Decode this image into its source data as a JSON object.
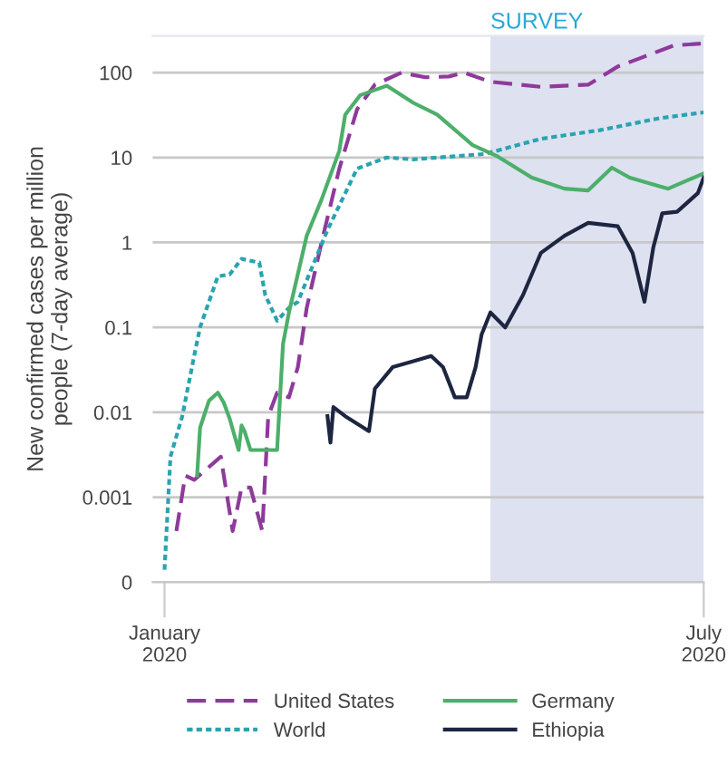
{
  "chart_data": {
    "type": "line",
    "ylabel": "New confirmed cases per million\npeople (7-day average)",
    "x": [
      "2020-01-05",
      "2020-01-08",
      "2020-01-11",
      "2020-01-20",
      "2020-01-24",
      "2020-01-27",
      "2020-01-30",
      "2020-02-03",
      "2020-02-05",
      "2020-02-08",
      "2020-02-12",
      "2020-02-15",
      "2020-02-18",
      "2020-02-23",
      "2020-02-29",
      "2020-03-06",
      "2020-03-12",
      "2020-03-21",
      "2020-03-29",
      "2020-04-06",
      "2020-04-11",
      "2020-04-20",
      "2020-05-07",
      "2020-05-23",
      "2020-06-02",
      "2020-06-10",
      "2020-06-21",
      "2020-06-30"
    ],
    "series": [
      {
        "name": "United States",
        "color": "#8e3a9b",
        "line_style": "dashed",
        "values": [
          0.0004,
          0.0018,
          0.0016,
          0.003,
          0.0004,
          0.0013,
          0.0013,
          0.0004,
          0.009,
          0.017,
          0.015,
          0.034,
          0.17,
          1,
          7.4,
          37,
          72,
          100,
          88,
          90,
          100,
          78,
          68,
          72,
          118,
          150,
          209,
          219
        ]
      },
      {
        "name": "World",
        "color": "#2aa3b0",
        "line_style": "dotted",
        "x": [
          "2020-01-01",
          "2020-01-03",
          "2020-01-07",
          "2020-01-11",
          "2020-01-13",
          "2020-01-19",
          "2020-01-23",
          "2020-01-27",
          "2020-02-02",
          "2020-02-04",
          "2020-02-08",
          "2020-02-12",
          "2020-02-15",
          "2020-02-25",
          "2020-03-06",
          "2020-03-16",
          "2020-03-25",
          "2020-04-18",
          "2020-05-07",
          "2020-05-27",
          "2020-06-16",
          "2020-07-01"
        ],
        "values": [
          0.00014,
          0.003,
          0.009,
          0.046,
          0.1,
          0.4,
          0.42,
          0.64,
          0.58,
          0.24,
          0.12,
          0.17,
          0.2,
          1.4,
          7.4,
          10,
          9.5,
          11,
          16.6,
          21,
          29,
          34
        ]
      },
      {
        "name": "Germany",
        "color": "#4caf6a",
        "line_style": "solid",
        "x": [
          "2020-01-12",
          "2020-01-13",
          "2020-01-16",
          "2020-01-19",
          "2020-01-21",
          "2020-01-23",
          "2020-01-26",
          "2020-01-27",
          "2020-01-28",
          "2020-01-30",
          "2020-02-08",
          "2020-02-10",
          "2020-02-12",
          "2020-02-18",
          "2020-02-23",
          "2020-02-29",
          "2020-03-02",
          "2020-03-07",
          "2020-03-16",
          "2020-03-25",
          "2020-04-02",
          "2020-04-14",
          "2020-04-22",
          "2020-05-04",
          "2020-05-15",
          "2020-05-23",
          "2020-05-31",
          "2020-06-06",
          "2020-06-19",
          "2020-07-01"
        ],
        "values": [
          0.0018,
          0.0066,
          0.0137,
          0.017,
          0.013,
          0.0084,
          0.0036,
          0.007,
          0.006,
          0.0036,
          0.0036,
          0.064,
          0.15,
          1.2,
          3.2,
          12,
          32,
          54,
          70,
          44,
          32,
          14,
          10.5,
          5.8,
          4.3,
          4.1,
          7.6,
          5.8,
          4.3,
          6.5
        ]
      },
      {
        "name": "Ethiopia",
        "color": "#1d2540",
        "line_style": "solid",
        "x": [
          "2020-02-25",
          "2020-02-26",
          "2020-02-27",
          "2020-03-02",
          "2020-03-07",
          "2020-03-10",
          "2020-03-12",
          "2020-03-18",
          "2020-03-25",
          "2020-03-31",
          "2020-04-04",
          "2020-04-08",
          "2020-04-12",
          "2020-04-15",
          "2020-04-17",
          "2020-04-20",
          "2020-04-25",
          "2020-05-01",
          "2020-05-07",
          "2020-05-15",
          "2020-05-23",
          "2020-06-02",
          "2020-06-07",
          "2020-06-11",
          "2020-06-14",
          "2020-06-17",
          "2020-06-22",
          "2020-06-29",
          "2020-07-01"
        ],
        "values": [
          0.009,
          0.0044,
          0.0115,
          0.009,
          0.007,
          0.006,
          0.019,
          0.034,
          0.04,
          0.046,
          0.034,
          0.015,
          0.015,
          0.034,
          0.082,
          0.15,
          0.1,
          0.24,
          0.75,
          1.2,
          1.7,
          1.55,
          0.75,
          0.2,
          0.88,
          2.2,
          2.3,
          3.8,
          5.8
        ]
      }
    ],
    "log": true,
    "grid": "y",
    "legend": "bottom",
    "xlim": [
      "2019-12-28",
      "2020-07-01"
    ],
    "xticks": [
      {
        "value": "2020-01-01",
        "label": "January\n2020"
      },
      {
        "value": "2020-07-01",
        "label": "July\n2020"
      }
    ],
    "ylim": [
      0.0001,
      270
    ],
    "yticks": [
      {
        "value": 0.0001,
        "label": "0"
      },
      0.001,
      0.01,
      0.1,
      1,
      10,
      100
    ],
    "bands": [
      {
        "axis": "x",
        "from": "2020-04-20",
        "to": "2020-07-01",
        "label": "SURVEY",
        "color": "#dde1f0"
      }
    ]
  }
}
